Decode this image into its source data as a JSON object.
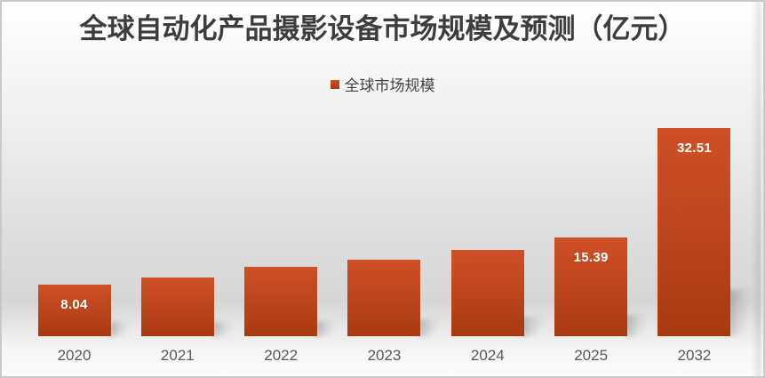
{
  "title": "全球自动化产品摄影设备市场规模及预测（亿元）",
  "legend": {
    "label": "全球市场规模"
  },
  "chart_data": {
    "type": "bar",
    "title": "全球自动化产品摄影设备市场规模及预测（亿元）",
    "categories": [
      "2020",
      "2021",
      "2022",
      "2023",
      "2024",
      "2025",
      "2032"
    ],
    "series": [
      {
        "name": "全球市场规模",
        "values": [
          8.04,
          9.2,
          10.9,
          12.0,
          13.5,
          15.39,
          32.51
        ]
      }
    ],
    "data_labels": [
      "8.04",
      "",
      "",
      "",
      "",
      "15.39",
      "32.51"
    ],
    "xlabel": "",
    "ylabel": "",
    "ylim": [
      0,
      34
    ],
    "grid": false,
    "y_axis_visible": false,
    "legend_position": "top-center",
    "colors": {
      "bar_gradient_top": "#cf5027",
      "bar_gradient_bottom": "#a83a12",
      "data_label_text": "#ffffff",
      "axis_tick_text": "#595959",
      "title_text": "#3d3d3d",
      "legend_text": "#444444",
      "frame_border": "#c9c9c9"
    }
  }
}
